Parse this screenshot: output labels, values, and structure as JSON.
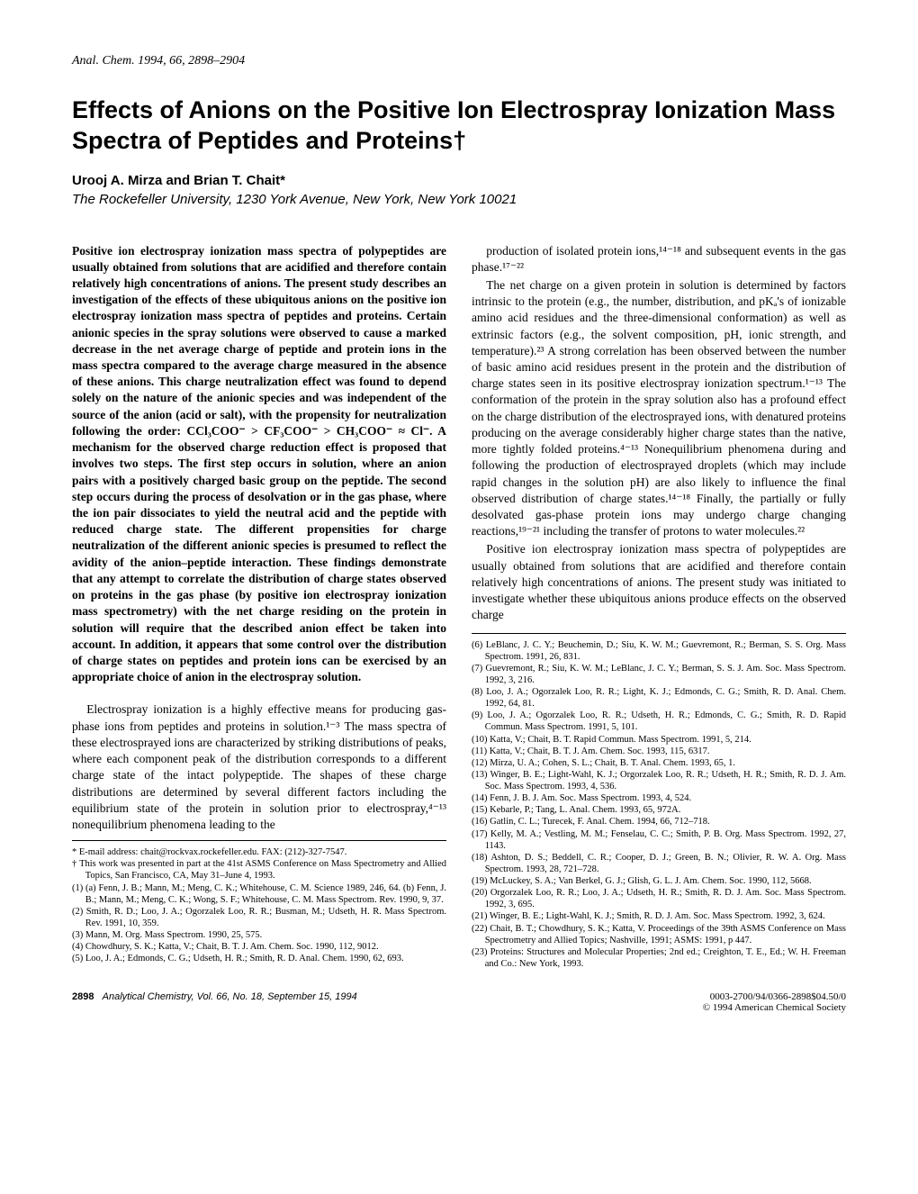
{
  "header": "Anal. Chem. 1994, 66, 2898–2904",
  "title": "Effects of Anions on the Positive Ion Electrospray Ionization Mass Spectra of Peptides and Proteins†",
  "authors": "Urooj A. Mirza and Brian T. Chait*",
  "affiliation": "The Rockefeller University, 1230 York Avenue, New York, New York 10021",
  "abstract": "Positive ion electrospray ionization mass spectra of polypeptides are usually obtained from solutions that are acidified and therefore contain relatively high concentrations of anions. The present study describes an investigation of the effects of these ubiquitous anions on the positive ion electrospray ionization mass spectra of peptides and proteins. Certain anionic species in the spray solutions were observed to cause a marked decrease in the net average charge of peptide and protein ions in the mass spectra compared to the average charge measured in the absence of these anions. This charge neutralization effect was found to depend solely on the nature of the anionic species and was independent of the source of the anion (acid or salt), with the propensity for neutralization following the order: CCl₃COO⁻ > CF₃COO⁻ > CH₃COO⁻ ≈ Cl⁻. A mechanism for the observed charge reduction effect is proposed that involves two steps. The first step occurs in solution, where an anion pairs with a positively charged basic group on the peptide. The second step occurs during the process of desolvation or in the gas phase, where the ion pair dissociates to yield the neutral acid and the peptide with reduced charge state. The different propensities for charge neutralization of the different anionic species is presumed to reflect the avidity of the anion–peptide interaction. These findings demonstrate that any attempt to correlate the distribution of charge states observed on proteins in the gas phase (by positive ion electrospray ionization mass spectrometry) with the net charge residing on the protein in solution will require that the described anion effect be taken into account. In addition, it appears that some control over the distribution of charge states on peptides and protein ions can be exercised by an appropriate choice of anion in the electrospray solution.",
  "intro": "Electrospray ionization is a highly effective means for producing gas-phase ions from peptides and proteins in solution.¹⁻³ The mass spectra of these electrosprayed ions are characterized by striking distributions of peaks, where each component peak of the distribution corresponds to a different charge state of the intact polypeptide. The shapes of these charge distributions are determined by several different factors including the equilibrium state of the protein in solution prior to electrospray,⁴⁻¹³ nonequilibrium phenomena leading to the",
  "col2p1": "production of isolated protein ions,¹⁴⁻¹⁸ and subsequent events in the gas phase.¹⁷⁻²²",
  "col2p2": "The net charge on a given protein in solution is determined by factors intrinsic to the protein (e.g., the number, distribution, and pKₐ's of ionizable amino acid residues and the three-dimensional conformation) as well as extrinsic factors (e.g., the solvent composition, pH, ionic strength, and temperature).²³ A strong correlation has been observed between the number of basic amino acid residues present in the protein and the distribution of charge states seen in its positive electrospray ionization spectrum.¹⁻¹³ The conformation of the protein in the spray solution also has a profound effect on the charge distribution of the electrosprayed ions, with denatured proteins producing on the average considerably higher charge states than the native, more tightly folded proteins.⁴⁻¹³ Nonequilibrium phenomena during and following the production of electrosprayed droplets (which may include rapid changes in the solution pH) are also likely to influence the final observed distribution of charge states.¹⁴⁻¹⁸ Finally, the partially or fully desolvated gas-phase protein ions may undergo charge changing reactions,¹⁹⁻²¹ including the transfer of protons to water molecules.²²",
  "col2p3": "Positive ion electrospray ionization mass spectra of polypeptides are usually obtained from solutions that are acidified and therefore contain relatively high concentrations of anions. The present study was initiated to investigate whether these ubiquitous anions produce effects on the observed charge",
  "leftRefs": [
    "* E-mail address: chait@rockvax.rockefeller.edu. FAX: (212)-327-7547.",
    "† This work was presented in part at the 41st ASMS Conference on Mass Spectrometry and Allied Topics, San Francisco, CA, May 31–June 4, 1993.",
    "(1) (a) Fenn, J. B.; Mann, M.; Meng, C. K.; Whitehouse, C. M. Science 1989, 246, 64. (b) Fenn, J. B.; Mann, M.; Meng, C. K.; Wong, S. F.; Whitehouse, C. M. Mass Spectrom. Rev. 1990, 9, 37.",
    "(2) Smith, R. D.; Loo, J. A.; Ogorzalek Loo, R. R.; Busman, M.; Udseth, H. R. Mass Spectrom. Rev. 1991, 10, 359.",
    "(3) Mann, M. Org. Mass Spectrom. 1990, 25, 575.",
    "(4) Chowdhury, S. K.; Katta, V.; Chait, B. T. J. Am. Chem. Soc. 1990, 112, 9012.",
    "(5) Loo, J. A.; Edmonds, C. G.; Udseth, H. R.; Smith, R. D. Anal. Chem. 1990, 62, 693."
  ],
  "rightRefs": [
    "(6) LeBlanc, J. C. Y.; Beuchemin, D.; Siu, K. W. M.; Guevremont, R.; Berman, S. S. Org. Mass Spectrom. 1991, 26, 831.",
    "(7) Guevremont, R.; Siu, K. W. M.; LeBlanc, J. C. Y.; Berman, S. S. J. Am. Soc. Mass Spectrom. 1992, 3, 216.",
    "(8) Loo, J. A.; Ogorzalek Loo, R. R.; Light, K. J.; Edmonds, C. G.; Smith, R. D. Anal. Chem. 1992, 64, 81.",
    "(9) Loo, J. A.; Ogorzalek Loo, R. R.; Udseth, H. R.; Edmonds, C. G.; Smith, R. D. Rapid Commun. Mass Spectrom. 1991, 5, 101.",
    "(10) Katta, V.; Chait, B. T. Rapid Commun. Mass Spectrom. 1991, 5, 214.",
    "(11) Katta, V.; Chait, B. T. J. Am. Chem. Soc. 1993, 115, 6317.",
    "(12) Mirza, U. A.; Cohen, S. L.; Chait, B. T. Anal. Chem. 1993, 65, 1.",
    "(13) Winger, B. E.; Light-Wahl, K. J.; Orgorzalek Loo, R. R.; Udseth, H. R.; Smith, R. D. J. Am. Soc. Mass Spectrom. 1993, 4, 536.",
    "(14) Fenn, J. B. J. Am. Soc. Mass Spectrom. 1993, 4, 524.",
    "(15) Kebarle, P.; Tang, L. Anal. Chem. 1993, 65, 972A.",
    "(16) Gatlin, C. L.; Turecek, F. Anal. Chem. 1994, 66, 712–718.",
    "(17) Kelly, M. A.; Vestling, M. M.; Fenselau, C. C.; Smith, P. B. Org. Mass Spectrom. 1992, 27, 1143.",
    "(18) Ashton, D. S.; Beddell, C. R.; Cooper, D. J.; Green, B. N.; Olivier, R. W. A. Org. Mass Spectrom. 1993, 28, 721–728.",
    "(19) McLuckey, S. A.; Van Berkel, G. J.; Glish, G. L. J. Am. Chem. Soc. 1990, 112, 5668.",
    "(20) Orgorzalek Loo, R. R.; Loo, J. A.; Udseth, H. R.; Smith, R. D. J. Am. Soc. Mass Spectrom. 1992, 3, 695.",
    "(21) Winger, B. E.; Light-Wahl, K. J.; Smith, R. D. J. Am. Soc. Mass Spectrom. 1992, 3, 624.",
    "(22) Chait, B. T.; Chowdhury, S. K.; Katta, V. Proceedings of the 39th ASMS Conference on Mass Spectrometry and Allied Topics; Nashville, 1991; ASMS: 1991, p 447.",
    "(23) Proteins: Structures and Molecular Properties; 2nd ed.; Creighton, T. E., Ed.; W. H. Freeman and Co.: New York, 1993."
  ],
  "footer": {
    "pageNum": "2898",
    "journal": "Analytical Chemistry, Vol. 66, No. 18, September 15, 1994",
    "right1": "0003-2700/94/0366-2898$04.50/0",
    "right2": "© 1994 American Chemical Society"
  }
}
